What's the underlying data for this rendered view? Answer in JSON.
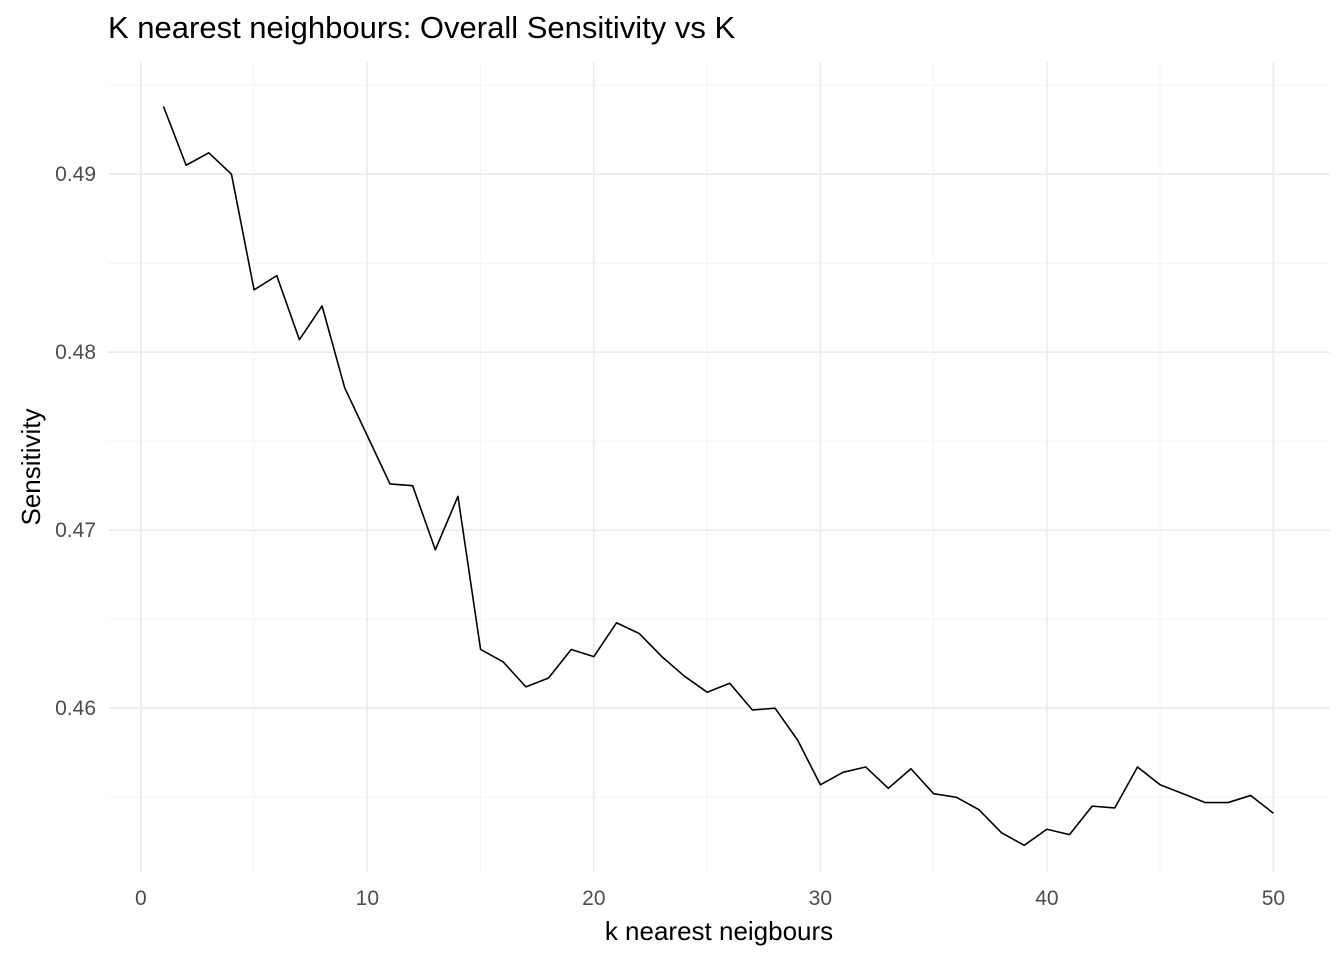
{
  "chart_data": {
    "type": "line",
    "title": "K nearest neighbours: Overall Sensitivity vs K",
    "xlabel": "k nearest neigbours",
    "ylabel": "Sensitivity",
    "x_ticks": [
      0,
      10,
      20,
      30,
      40,
      50
    ],
    "x_tick_labels": [
      "0",
      "10",
      "20",
      "30",
      "40",
      "50"
    ],
    "y_ticks": [
      0.46,
      0.47,
      0.48,
      0.49
    ],
    "y_tick_labels": [
      "0.46",
      "0.47",
      "0.48",
      "0.49"
    ],
    "xlim": [
      -1.45,
      52.5
    ],
    "ylim": [
      0.4508,
      0.4963
    ],
    "grid": true,
    "colors": {
      "line": "#000000",
      "grid_major": "#ebebeb",
      "grid_minor": "#f2f2f2",
      "tick_text": "#4d4d4d"
    },
    "x": [
      1,
      2,
      3,
      4,
      5,
      6,
      7,
      8,
      9,
      10,
      11,
      12,
      13,
      14,
      15,
      16,
      17,
      18,
      19,
      20,
      21,
      22,
      23,
      24,
      25,
      26,
      27,
      28,
      29,
      30,
      31,
      32,
      33,
      34,
      35,
      36,
      37,
      38,
      39,
      40,
      41,
      42,
      43,
      44,
      45,
      46,
      47,
      48,
      49,
      50
    ],
    "y": [
      0.4938,
      0.4905,
      0.4912,
      0.49,
      0.4835,
      0.4843,
      0.4807,
      0.4826,
      0.478,
      0.4753,
      0.4726,
      0.4725,
      0.4689,
      0.4719,
      0.4633,
      0.4626,
      0.4612,
      0.4617,
      0.4633,
      0.4629,
      0.4648,
      0.4642,
      0.4629,
      0.4618,
      0.4609,
      0.4614,
      0.4599,
      0.46,
      0.4582,
      0.4557,
      0.4564,
      0.4567,
      0.4555,
      0.4566,
      0.4552,
      0.455,
      0.4543,
      0.453,
      0.4523,
      0.4532,
      0.4529,
      0.4545,
      0.4544,
      0.4567,
      0.4557,
      0.4552,
      0.4547,
      0.4547,
      0.4551,
      0.4541
    ]
  }
}
